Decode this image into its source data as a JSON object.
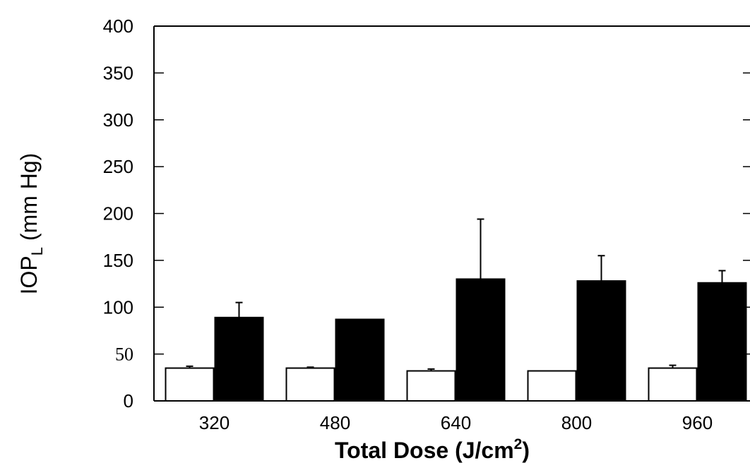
{
  "chart_data": {
    "type": "bar",
    "categories": [
      "320",
      "480",
      "640",
      "800",
      "960"
    ],
    "series": [
      {
        "fill": "#ffffff",
        "values": [
          35,
          35,
          32,
          32,
          35
        ],
        "errors": [
          2,
          1,
          2,
          0,
          3
        ]
      },
      {
        "fill": "#000000",
        "values": [
          89,
          87,
          130,
          128,
          126
        ],
        "errors": [
          16,
          0,
          64,
          27,
          13
        ]
      }
    ],
    "ylim": [
      0,
      400
    ],
    "yticks": [
      0,
      50,
      100,
      150,
      200,
      250,
      300,
      350,
      400
    ],
    "yticks_serif": [
      50
    ],
    "ylabel": {
      "main": "IOP",
      "subscript": "L",
      "units": " (mm Hg)"
    },
    "xlabel": {
      "main": "Total Dose (J/cm",
      "superscript": "2",
      "end": ")"
    },
    "grid": false,
    "legend": "none"
  }
}
